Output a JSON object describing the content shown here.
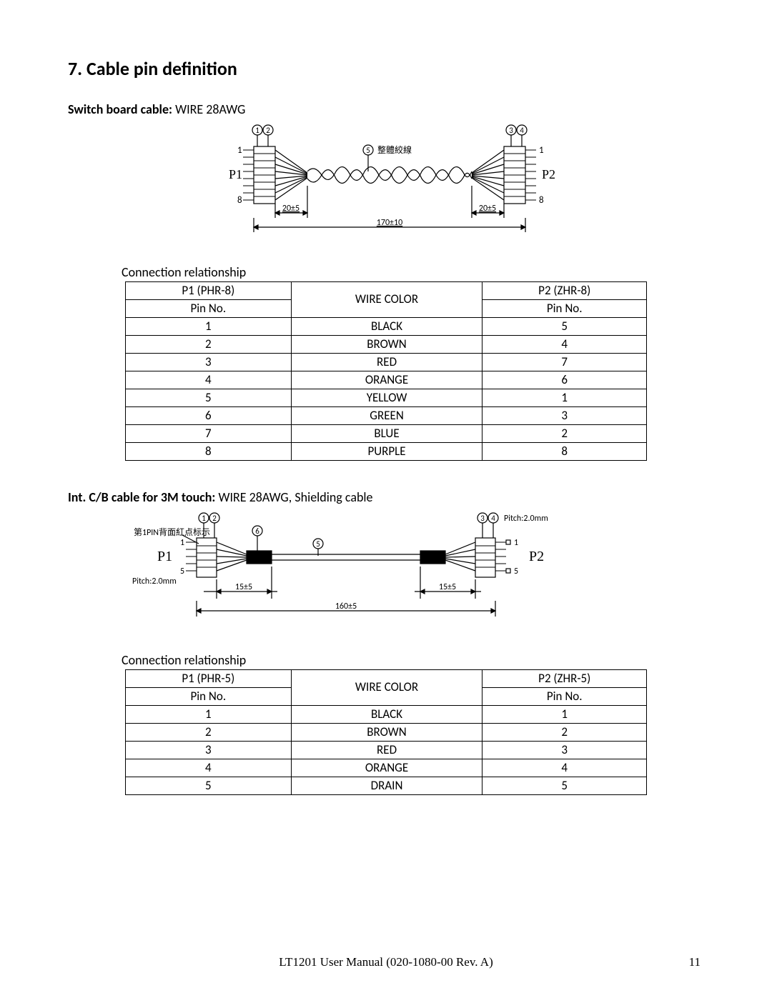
{
  "section_title": "7. Cable pin definition",
  "cable1": {
    "label_bold": "Switch board cable:",
    "label_rest": "    WIRE 28AWG",
    "diagram": {
      "p1_label": "P1",
      "p2_label": "P2",
      "pin1": "1",
      "pin8": "8",
      "callout_text": "整體絞線",
      "dim_left": "20±5",
      "dim_right": "20±5",
      "dim_total": "170±10",
      "circles": [
        "1",
        "2",
        "3",
        "4",
        "5"
      ]
    },
    "caption": "Connection relationship",
    "table": {
      "type": "table",
      "col_p1_header": "P1    (PHR-8)",
      "col_wire_header": "WIRE COLOR",
      "col_p2_header": "P2    (ZHR-8)",
      "col_pin_no": "Pin No.",
      "rows": [
        [
          "1",
          "BLACK",
          "5"
        ],
        [
          "2",
          "BROWN",
          "4"
        ],
        [
          "3",
          "RED",
          "7"
        ],
        [
          "4",
          "ORANGE",
          "6"
        ],
        [
          "5",
          "YELLOW",
          "1"
        ],
        [
          "6",
          "GREEN",
          "3"
        ],
        [
          "7",
          "BLUE",
          "2"
        ],
        [
          "8",
          "PURPLE",
          "8"
        ]
      ],
      "border_color": "#000000",
      "text_color": "#000000"
    }
  },
  "cable2": {
    "label_bold": "Int. C/B cable for 3M touch:",
    "label_rest": "    WIRE 28AWG, Shielding cable",
    "diagram": {
      "p1_label": "P1",
      "p2_label": "P2",
      "pin1": "1",
      "pin5": "5",
      "pitch_left": "Pitch:2.0mm",
      "pitch_right": "Pitch:2.0mm",
      "note_left": "第1PIN背面紅点标示",
      "dim_left": "15±5",
      "dim_right": "15±5",
      "dim_total": "160±5",
      "circles": [
        "1",
        "2",
        "3",
        "4",
        "5",
        "6"
      ]
    },
    "caption": "Connection relationship",
    "table": {
      "type": "table",
      "col_p1_header": "P1    (PHR-5)",
      "col_wire_header": "WIRE COLOR",
      "col_p2_header": "P2    (ZHR-5)",
      "col_pin_no": "Pin No.",
      "rows": [
        [
          "1",
          "BLACK",
          "1"
        ],
        [
          "2",
          "BROWN",
          "2"
        ],
        [
          "3",
          "RED",
          "3"
        ],
        [
          "4",
          "ORANGE",
          "4"
        ],
        [
          "5",
          "DRAIN",
          "5"
        ]
      ],
      "border_color": "#000000",
      "text_color": "#000000"
    }
  },
  "footer": {
    "center": "LT1201 User Manual (020-1080-00 Rev. A)",
    "page": "11"
  },
  "colors": {
    "background": "#ffffff",
    "text": "#000000",
    "line": "#000000"
  }
}
